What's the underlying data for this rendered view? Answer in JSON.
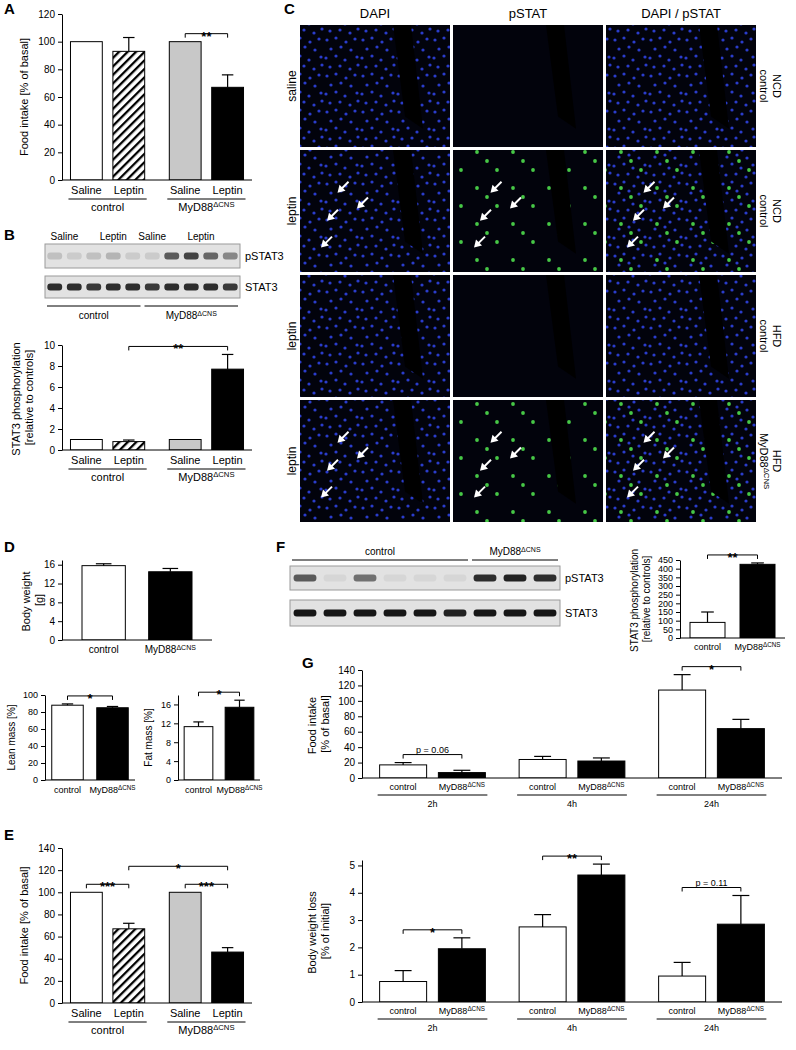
{
  "chart_data": [
    {
      "panel": "A",
      "type": "bar",
      "ylabel": "Food intake [% of basal]",
      "ylim": [
        0,
        120
      ],
      "yticks": [
        0,
        20,
        40,
        60,
        80,
        100,
        120
      ],
      "categories": [
        "Saline",
        "Leptin",
        "Saline",
        "Leptin"
      ],
      "groups": [
        "control",
        "control",
        "MyD88ΔCNS",
        "MyD88ΔCNS"
      ],
      "values": [
        100,
        93,
        100,
        67
      ],
      "errors": [
        null,
        10,
        null,
        9
      ],
      "colors": [
        "#ffffff",
        "hatch",
        "#c8c8c8",
        "#000000"
      ],
      "annotations": [
        {
          "text": "**",
          "between": [
            2,
            3
          ]
        }
      ]
    },
    {
      "panel": "B",
      "type": "blot",
      "lane_labels": [
        "Saline",
        "Leptin",
        "Saline",
        "Leptin"
      ],
      "rows": [
        "pSTAT3",
        "STAT3"
      ],
      "groups": [
        "control",
        "MyD88ΔCNS"
      ]
    },
    {
      "type": "bar",
      "ylabel": "STAT3 phosphorylation [relative to controls]",
      "ylim": [
        0,
        10
      ],
      "yticks": [
        0,
        2,
        4,
        6,
        8,
        10
      ],
      "categories": [
        "Saline",
        "Leptin",
        "Saline",
        "Leptin"
      ],
      "groups": [
        "control",
        "control",
        "MyD88ΔCNS",
        "MyD88ΔCNS"
      ],
      "values": [
        1,
        0.8,
        1,
        7.7
      ],
      "errors": [
        null,
        0.15,
        null,
        1.4
      ],
      "colors": [
        "#ffffff",
        "hatch",
        "#c8c8c8",
        "#000000"
      ],
      "annotations": [
        {
          "text": "**",
          "between": [
            1,
            3
          ]
        }
      ]
    },
    {
      "panel": "C",
      "type": "image",
      "columns": [
        "DAPI",
        "pSTAT",
        "DAPI / pSTAT"
      ],
      "rows": [
        {
          "treatment": "saline",
          "genotype": "control",
          "diet": "NCD"
        },
        {
          "treatment": "leptin",
          "genotype": "control",
          "diet": "NCD"
        },
        {
          "treatment": "leptin",
          "genotype": "control",
          "diet": "HFD"
        },
        {
          "treatment": "leptin",
          "genotype": "MyD88ΔCNS",
          "diet": "HFD"
        }
      ]
    },
    {
      "panel": "D",
      "type": "bar",
      "ylabel": "Body weight [g]",
      "ylim": [
        0,
        17
      ],
      "yticks": [
        0,
        4,
        8,
        12,
        16
      ],
      "categories": [
        "control",
        "MyD88ΔCNS"
      ],
      "values": [
        15.8,
        14.5
      ],
      "errors": [
        0.4,
        0.7
      ],
      "colors": [
        "#ffffff",
        "#000000"
      ]
    },
    {
      "type": "bar",
      "ylabel": "Lean mass [%]",
      "ylim": [
        0,
        100
      ],
      "yticks": [
        0,
        20,
        40,
        60,
        80,
        100
      ],
      "categories": [
        "control",
        "MyD88ΔCNS"
      ],
      "values": [
        88,
        85
      ],
      "errors": [
        1.5,
        1.5
      ],
      "colors": [
        "#ffffff",
        "#000000"
      ],
      "annotations": [
        {
          "text": "*",
          "between": [
            0,
            1
          ]
        }
      ]
    },
    {
      "type": "bar",
      "ylabel": "Fat mass [%]",
      "ylim": [
        0,
        18
      ],
      "yticks": [
        0,
        4,
        8,
        12,
        16
      ],
      "categories": [
        "control",
        "MyD88ΔCNS"
      ],
      "values": [
        11.3,
        15.4
      ],
      "errors": [
        1,
        1.5
      ],
      "colors": [
        "#ffffff",
        "#000000"
      ],
      "annotations": [
        {
          "text": "*",
          "between": [
            0,
            1
          ]
        }
      ]
    },
    {
      "panel": "E",
      "type": "bar",
      "ylabel": "Food intake [% of basal]",
      "ylim": [
        0,
        140
      ],
      "yticks": [
        0,
        20,
        40,
        60,
        80,
        100,
        120,
        140
      ],
      "categories": [
        "Saline",
        "Leptin",
        "Saline",
        "Leptin"
      ],
      "groups": [
        "control",
        "control",
        "MyD88ΔCNS",
        "MyD88ΔCNS"
      ],
      "values": [
        100,
        67,
        100,
        46
      ],
      "errors": [
        null,
        5,
        null,
        4
      ],
      "colors": [
        "#ffffff",
        "hatch",
        "#c8c8c8",
        "#000000"
      ],
      "annotations": [
        {
          "text": "***",
          "between": [
            0,
            1
          ]
        },
        {
          "text": "***",
          "between": [
            2,
            3
          ]
        },
        {
          "text": "*",
          "between": [
            1,
            3
          ]
        }
      ]
    },
    {
      "panel": "F",
      "type": "blot",
      "rows": [
        "pSTAT3",
        "STAT3"
      ],
      "groups": [
        "control",
        "MyD88ΔCNS"
      ]
    },
    {
      "type": "bar",
      "ylabel": "STAT3 phosphorylation [relative to controls]",
      "ylim": [
        0,
        450
      ],
      "yticks": [
        0,
        50,
        100,
        150,
        200,
        250,
        300,
        350,
        400,
        450
      ],
      "categories": [
        "control",
        "MyD88ΔCNS"
      ],
      "values": [
        90,
        425
      ],
      "errors": [
        60,
        8
      ],
      "colors": [
        "#ffffff",
        "#000000"
      ],
      "annotations": [
        {
          "text": "**",
          "between": [
            0,
            1
          ]
        }
      ]
    },
    {
      "panel": "G",
      "type": "bar",
      "ylabel": "Food intake [% of basal]",
      "ylim": [
        0,
        140
      ],
      "yticks": [
        0,
        20,
        40,
        60,
        80,
        100,
        120,
        140
      ],
      "categories": [
        "control",
        "MyD88ΔCNS",
        "control",
        "MyD88ΔCNS",
        "control",
        "MyD88ΔCNS"
      ],
      "groups": [
        "2h",
        "2h",
        "4h",
        "4h",
        "24h",
        "24h"
      ],
      "values": [
        17,
        7,
        24,
        22,
        114,
        64
      ],
      "errors": [
        3,
        3,
        4,
        4,
        20,
        12
      ],
      "colors": [
        "#ffffff",
        "#000000",
        "#ffffff",
        "#000000",
        "#ffffff",
        "#000000"
      ],
      "annotations": [
        {
          "text": "p = 0.06",
          "between": [
            0,
            1
          ]
        },
        {
          "text": "*",
          "between": [
            4,
            5
          ]
        }
      ]
    },
    {
      "type": "bar",
      "ylabel": "Body weight loss [% of initial]",
      "ylim": [
        0,
        5.2
      ],
      "yticks": [
        0,
        1,
        2,
        3,
        4,
        5
      ],
      "categories": [
        "control",
        "MyD88ΔCNS",
        "control",
        "MyD88ΔCNS",
        "control",
        "MyD88ΔCNS"
      ],
      "groups": [
        "2h",
        "2h",
        "4h",
        "4h",
        "24h",
        "24h"
      ],
      "values": [
        0.75,
        1.95,
        2.75,
        4.65,
        0.95,
        2.85
      ],
      "errors": [
        0.4,
        0.4,
        0.45,
        0.4,
        0.5,
        1.05
      ],
      "colors": [
        "#ffffff",
        "#000000",
        "#ffffff",
        "#000000",
        "#ffffff",
        "#000000"
      ],
      "annotations": [
        {
          "text": "*",
          "between": [
            0,
            1
          ]
        },
        {
          "text": "**",
          "between": [
            2,
            3
          ]
        },
        {
          "text": "p = 0.11",
          "between": [
            4,
            5
          ]
        }
      ]
    }
  ]
}
